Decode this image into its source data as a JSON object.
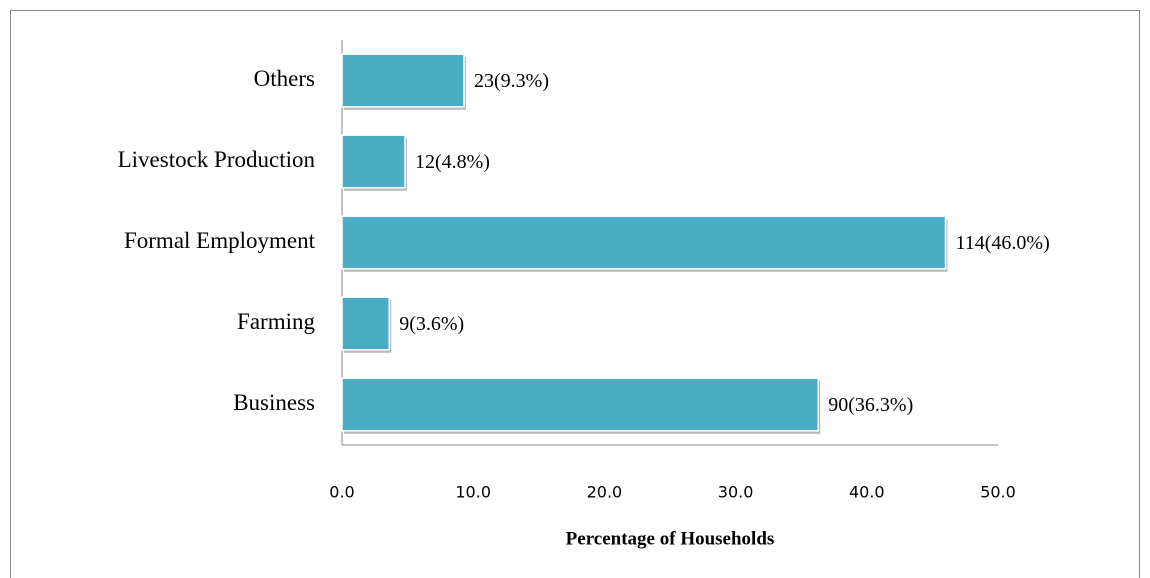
{
  "chart_data": {
    "type": "bar",
    "orientation": "horizontal",
    "x_label": "Percentage of Households",
    "categories": [
      "Business",
      "Farming",
      "Formal Employment",
      "Livestock Production",
      "Others"
    ],
    "values": [
      36.3,
      3.6,
      46.0,
      4.8,
      9.3
    ],
    "value_labels": [
      "90(36.3%)",
      "9(3.6%)",
      "114(46.0%)",
      "12(4.8%)",
      "23(9.3%)"
    ],
    "color": "#4bacc6",
    "xlim": [
      0,
      50
    ],
    "xticks": [
      {
        "value": 0,
        "label": "0.0"
      },
      {
        "value": 10,
        "label": "10.0"
      },
      {
        "value": 20,
        "label": "20.0"
      },
      {
        "value": 30,
        "label": "30.0"
      },
      {
        "value": 40,
        "label": "40.0"
      },
      {
        "value": 50,
        "label": "50.0"
      }
    ],
    "grid": false
  }
}
